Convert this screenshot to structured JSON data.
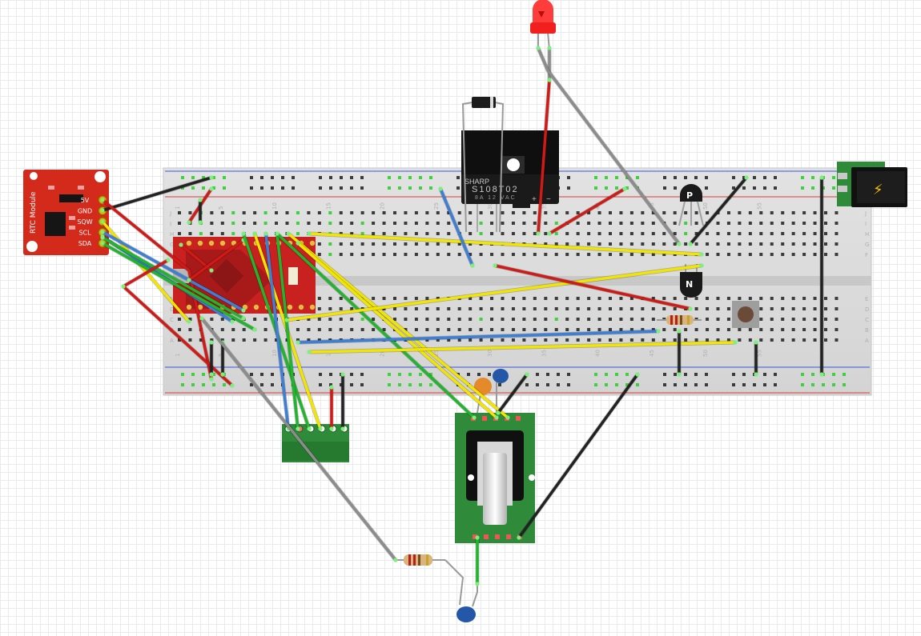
{
  "rtc_module": {
    "title": "RTC Module",
    "pins": [
      "5V",
      "GND",
      "SQW",
      "SCL",
      "SDA"
    ]
  },
  "relay": {
    "brand": "SHARP",
    "part": "S108T02",
    "rating": "8A 12 VAC",
    "plus": "+",
    "minus": "−"
  },
  "transistors": {
    "pnp": "P",
    "npn": "N"
  },
  "power_jack": {
    "symbol": "⚡"
  },
  "breadboard": {
    "column_numbers": [
      "1",
      "5",
      "10",
      "15",
      "20",
      "25",
      "30",
      "35",
      "40",
      "45",
      "50",
      "55"
    ],
    "row_letters_top": [
      "J",
      "I",
      "H",
      "G",
      "F"
    ],
    "row_letters_bottom": [
      "E",
      "D",
      "C",
      "B",
      "A"
    ]
  },
  "colors": {
    "wire_red": "#d01a16",
    "wire_black": "#222222",
    "wire_yellow": "#f2e600",
    "wire_blue": "#3d7fd4",
    "wire_green": "#21b52e",
    "wire_gray": "#8c8c8c",
    "board_green": "#2f8a3a",
    "rtc_red": "#d42a1c"
  }
}
